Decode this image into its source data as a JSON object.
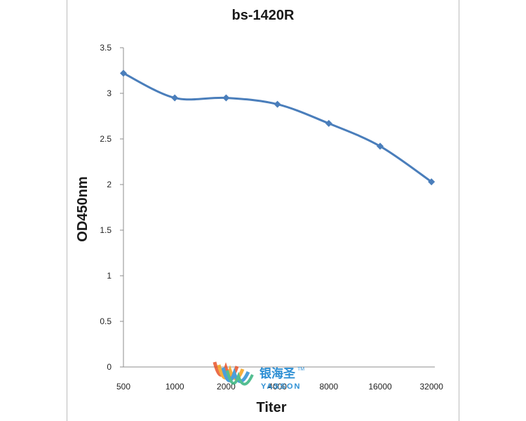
{
  "chart_data": {
    "type": "line",
    "title": "bs-1420R",
    "xlabel": "Titer",
    "ylabel": "OD450nm",
    "categories": [
      "500",
      "1000",
      "2000",
      "4000",
      "8000",
      "16000",
      "32000"
    ],
    "series": [
      {
        "values": [
          3.22,
          2.95,
          2.95,
          2.88,
          2.67,
          2.42,
          2.03
        ]
      }
    ],
    "ylim": [
      0,
      3.5
    ],
    "yticks": [
      "0",
      "0.5",
      "1",
      "1.5",
      "2",
      "2.5",
      "3",
      "3.5"
    ],
    "grid": false,
    "legend": "none",
    "colors": {
      "line": "#4a7ebb",
      "axis": "#8c8c8c"
    }
  },
  "watermark": {
    "cn": "银海圣",
    "en": "YASSON",
    "tm": "TM"
  }
}
